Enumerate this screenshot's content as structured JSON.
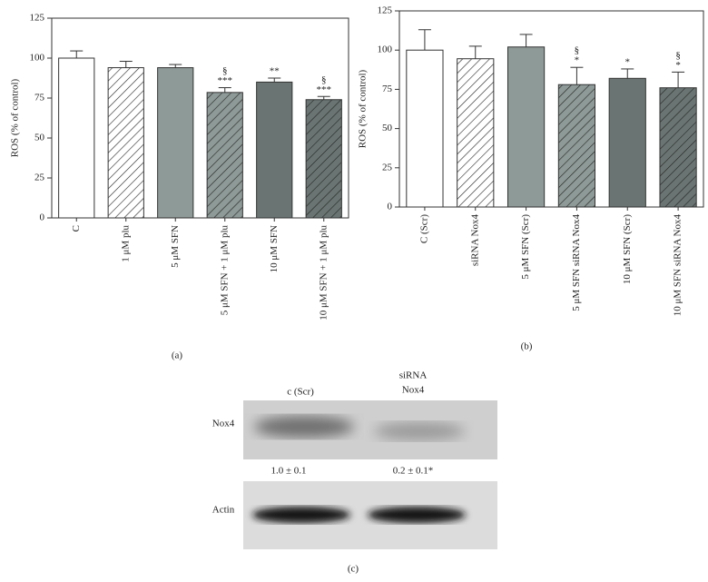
{
  "chart_data": [
    {
      "type": "bar",
      "panel_label": "(a)",
      "y_label": "ROS (% of control)",
      "categories": [
        "C",
        "1 μM plu",
        "5 μM SFN",
        "5 μM SFN + 1 μM plu",
        "10 μM SFN",
        "10 μM SFN + 1 μM plu"
      ],
      "values": [
        100,
        94,
        94,
        78.5,
        85,
        74
      ],
      "errors": [
        4.5,
        4,
        2,
        3,
        2.5,
        2
      ],
      "colors": [
        "#ffffff",
        "#ffffff",
        "#8e9a97",
        "#8e9a97",
        "#6a7573",
        "#6a7573"
      ],
      "hatch": [
        false,
        true,
        false,
        true,
        false,
        true
      ],
      "annotations": [
        null,
        null,
        null,
        [
          "§",
          "***"
        ],
        [
          "**"
        ],
        [
          "§",
          "***"
        ]
      ],
      "ylim": [
        0,
        125
      ],
      "yticks": [
        0,
        25,
        50,
        75,
        100,
        125
      ]
    },
    {
      "type": "bar",
      "panel_label": "(b)",
      "y_label": "ROS (% of control)",
      "categories": [
        "C (Scr)",
        "siRNA Nox4",
        "5 μM SFN (Scr)",
        "5 μM SFN siRNA Nox4",
        "10 μM SFN (Scr)",
        "10 μM SFN siRNA Nox4"
      ],
      "values": [
        100,
        94.5,
        102,
        78,
        82,
        76
      ],
      "errors": [
        13,
        8,
        8,
        11,
        6,
        10
      ],
      "colors": [
        "#ffffff",
        "#ffffff",
        "#8e9a97",
        "#8e9a97",
        "#6a7573",
        "#6a7573"
      ],
      "hatch": [
        false,
        true,
        false,
        true,
        false,
        true
      ],
      "annotations": [
        null,
        null,
        null,
        [
          "§",
          "*"
        ],
        [
          "*"
        ],
        [
          "§",
          "*"
        ]
      ],
      "ylim": [
        0,
        125
      ],
      "yticks": [
        0,
        25,
        50,
        75,
        100,
        125
      ]
    }
  ],
  "blot": {
    "panel_label": "(c)",
    "lane1": "c (Scr)",
    "lane2_line1": "siRNA",
    "lane2_line2": "Nox4",
    "row1": "Nox4",
    "row2": "Actin",
    "quant1": "1.0 ± 0.1",
    "quant2": "0.2 ± 0.1*"
  }
}
